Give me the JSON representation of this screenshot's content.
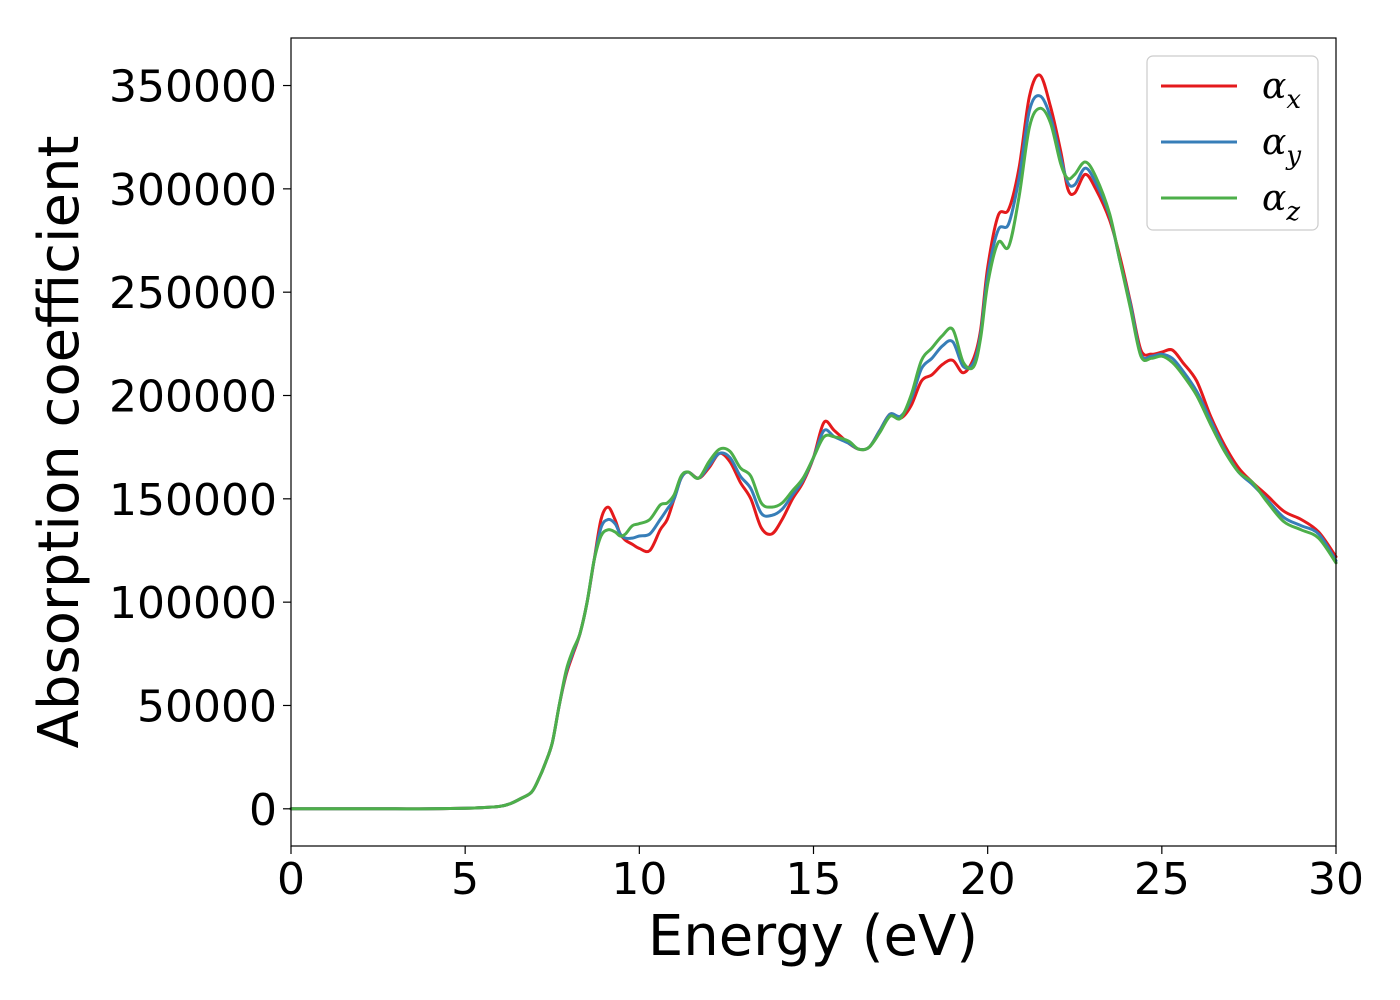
{
  "chart_data": {
    "type": "line",
    "title": "",
    "xlabel": "Energy (eV)",
    "ylabel": "Absorption coefficient",
    "xlim": [
      0,
      30
    ],
    "ylim": [
      -18000,
      373000
    ],
    "xticks": [
      0,
      5,
      10,
      15,
      20,
      25,
      30
    ],
    "yticks": [
      0,
      50000,
      100000,
      150000,
      200000,
      250000,
      300000,
      350000
    ],
    "grid": false,
    "legend_position": "top-right",
    "x": [
      0,
      1,
      2,
      3,
      4,
      5,
      5.5,
      6,
      6.3,
      6.6,
      6.9,
      7.1,
      7.3,
      7.5,
      7.7,
      7.9,
      8.1,
      8.3,
      8.5,
      8.7,
      8.9,
      9.1,
      9.3,
      9.45,
      9.6,
      9.8,
      10,
      10.3,
      10.6,
      10.8,
      11,
      11.2,
      11.4,
      11.7,
      12,
      12.3,
      12.6,
      12.9,
      13.2,
      13.5,
      13.8,
      14.1,
      14.4,
      14.7,
      15,
      15.3,
      15.6,
      16,
      16.3,
      16.6,
      16.9,
      17.2,
      17.5,
      17.8,
      18.1,
      18.4,
      18.7,
      19,
      19.3,
      19.6,
      19.8,
      20,
      20.3,
      20.6,
      20.9,
      21.2,
      21.5,
      21.8,
      22.1,
      22.3,
      22.5,
      22.8,
      23.1,
      23.5,
      23.8,
      24.1,
      24.4,
      24.7,
      25,
      25.3,
      25.6,
      26,
      26.4,
      26.8,
      27.2,
      27.6,
      28,
      28.5,
      29,
      29.5,
      30
    ],
    "series": [
      {
        "name": "α",
        "subscript": "x",
        "color": "#e41a1c",
        "values": [
          0,
          0,
          0,
          0,
          0,
          300,
          600,
          1200,
          2500,
          5000,
          8000,
          14000,
          22000,
          32000,
          50000,
          65000,
          75000,
          85000,
          100000,
          120000,
          140000,
          146000,
          140000,
          133000,
          130000,
          128000,
          126000,
          125000,
          135000,
          140000,
          150000,
          160000,
          163000,
          160000,
          165000,
          172000,
          168000,
          158000,
          150000,
          136000,
          133000,
          140000,
          150000,
          158000,
          170000,
          187000,
          183000,
          177000,
          174000,
          175000,
          183000,
          191000,
          189000,
          195000,
          207000,
          210000,
          215000,
          217000,
          211000,
          218000,
          232000,
          262000,
          287000,
          290000,
          310000,
          345000,
          355000,
          340000,
          318000,
          300000,
          298000,
          307000,
          300000,
          285000,
          267000,
          245000,
          222000,
          220000,
          221000,
          222000,
          216000,
          207000,
          190000,
          176000,
          165000,
          158000,
          152000,
          144000,
          140000,
          134000,
          122000
        ]
      },
      {
        "name": "α",
        "subscript": "y",
        "color": "#377eb8",
        "values": [
          0,
          0,
          0,
          0,
          0,
          300,
          600,
          1200,
          2500,
          5000,
          8000,
          14000,
          22000,
          32000,
          50000,
          66000,
          76000,
          85000,
          100000,
          120000,
          136000,
          140000,
          138000,
          133000,
          131000,
          131000,
          132000,
          133000,
          140000,
          145000,
          150000,
          160000,
          163000,
          160000,
          166000,
          172000,
          170000,
          161000,
          155000,
          143000,
          142000,
          145000,
          152000,
          159000,
          170000,
          183000,
          180000,
          177000,
          174000,
          175000,
          183000,
          191000,
          190000,
          198000,
          213000,
          218000,
          224000,
          226000,
          214000,
          216000,
          230000,
          258000,
          280000,
          283000,
          305000,
          338000,
          345000,
          335000,
          315000,
          303000,
          302000,
          310000,
          303000,
          287000,
          265000,
          244000,
          220000,
          219000,
          220000,
          218000,
          212000,
          202000,
          188000,
          174000,
          163000,
          157000,
          150000,
          141000,
          137000,
          133000,
          120000
        ]
      },
      {
        "name": "α",
        "subscript": "z",
        "color": "#4daf4a",
        "values": [
          0,
          0,
          0,
          0,
          0,
          300,
          600,
          1200,
          2500,
          5000,
          8000,
          14000,
          22000,
          32000,
          50000,
          67000,
          77000,
          85000,
          100000,
          120000,
          132000,
          135000,
          134000,
          132000,
          133000,
          137000,
          138000,
          140000,
          147000,
          148000,
          152000,
          161000,
          163000,
          160000,
          168000,
          174000,
          173000,
          165000,
          161000,
          148000,
          146000,
          148000,
          154000,
          160000,
          170000,
          180000,
          180000,
          178000,
          174000,
          175000,
          182000,
          190000,
          189000,
          200000,
          217000,
          223000,
          229000,
          232000,
          216000,
          214000,
          228000,
          254000,
          274000,
          272000,
          296000,
          330000,
          339000,
          332000,
          312000,
          305000,
          307000,
          313000,
          306000,
          288000,
          265000,
          242000,
          219000,
          218000,
          219000,
          216000,
          210000,
          200000,
          186000,
          173000,
          163000,
          158000,
          149000,
          139000,
          135000,
          131000,
          119000
        ]
      }
    ]
  }
}
